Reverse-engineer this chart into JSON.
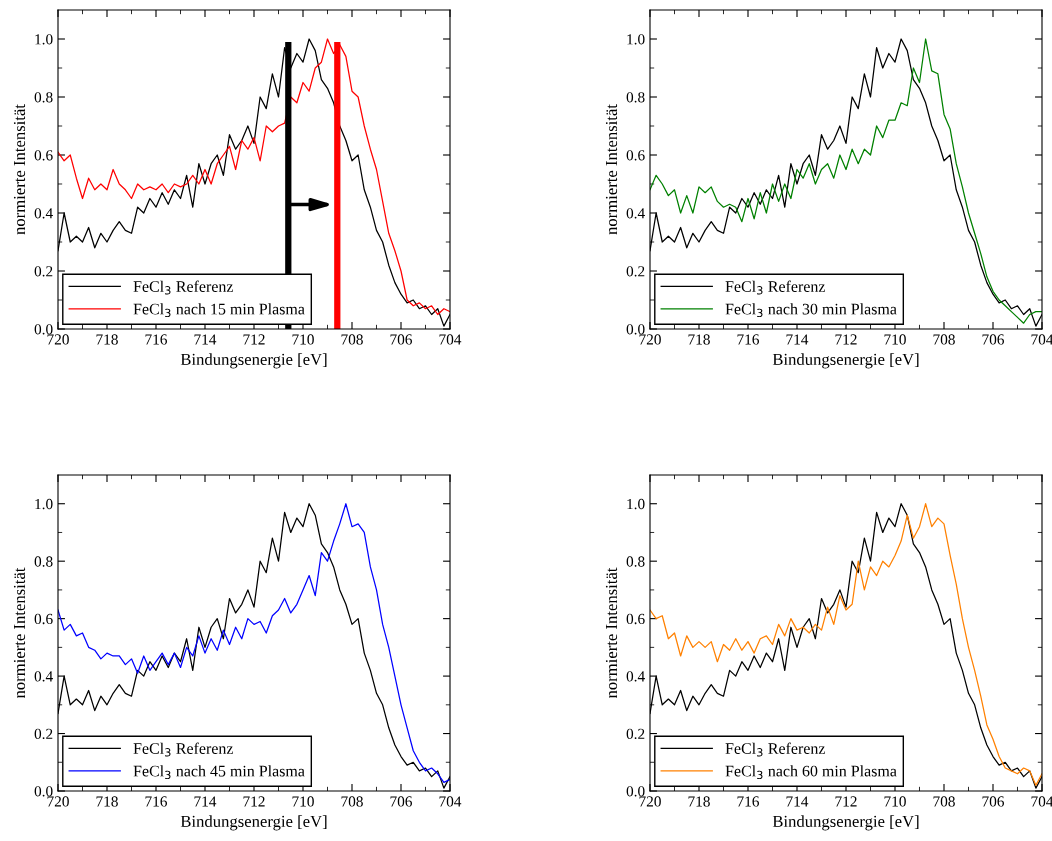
{
  "chart_data": [
    {
      "type": "line",
      "xlabel": "Bindungsenergie [eV]",
      "ylabel": "normierte Intensität",
      "xlim": [
        720,
        704
      ],
      "ylim": [
        0,
        1.1
      ],
      "xticks": [
        720,
        {
          "value": 719,
          "label": null
        },
        718,
        {
          "value": 717,
          "label": null
        },
        716,
        {
          "value": 715,
          "label": null
        },
        714,
        {
          "value": 713,
          "label": null
        },
        712,
        {
          "value": 711,
          "label": null
        },
        710,
        {
          "value": 709,
          "label": null
        },
        708,
        {
          "value": 707,
          "label": null
        },
        706,
        {
          "value": 705,
          "label": null
        },
        704
      ],
      "yticks": [
        {
          "value": 0,
          "label": "0.0"
        },
        {
          "value": 0.1,
          "label": null
        },
        {
          "value": 0.2,
          "label": "0.2"
        },
        {
          "value": 0.3,
          "label": null
        },
        {
          "value": 0.4,
          "label": "0.4"
        },
        {
          "value": 0.5,
          "label": null
        },
        {
          "value": 0.6,
          "label": "0.6"
        },
        {
          "value": 0.7,
          "label": null
        },
        {
          "value": 0.8,
          "label": "0.8"
        },
        {
          "value": 0.9,
          "label": null
        },
        {
          "value": 1.0,
          "label": "1.0"
        }
      ],
      "legend": "bottom left",
      "grid": false,
      "x": [
        720,
        719.75,
        719.5,
        719.25,
        719,
        718.75,
        718.5,
        718.25,
        718,
        717.75,
        717.5,
        717.25,
        717,
        716.75,
        716.5,
        716.25,
        716,
        715.75,
        715.5,
        715.25,
        715,
        714.75,
        714.5,
        714.25,
        714,
        713.75,
        713.5,
        713.25,
        713,
        712.75,
        712.5,
        712.25,
        712,
        711.75,
        711.5,
        711.25,
        711,
        710.75,
        710.5,
        710.25,
        710,
        709.75,
        709.5,
        709.25,
        709,
        708.75,
        708.5,
        708.25,
        708,
        707.75,
        707.5,
        707.25,
        707,
        706.75,
        706.5,
        706.25,
        706,
        705.75,
        705.5,
        705.25,
        705,
        704.75,
        704.5,
        704.25,
        704
      ],
      "series": [
        {
          "name": "FeCl$_{3}$ Referenz",
          "color": "#000000",
          "values": [
            0.27,
            0.4,
            0.3,
            0.32,
            0.3,
            0.35,
            0.28,
            0.33,
            0.3,
            0.34,
            0.37,
            0.34,
            0.33,
            0.42,
            0.4,
            0.45,
            0.42,
            0.47,
            0.43,
            0.48,
            0.45,
            0.53,
            0.42,
            0.57,
            0.5,
            0.57,
            0.6,
            0.53,
            0.67,
            0.62,
            0.65,
            0.7,
            0.64,
            0.8,
            0.76,
            0.88,
            0.8,
            0.97,
            0.9,
            0.95,
            0.92,
            1.0,
            0.96,
            0.86,
            0.83,
            0.78,
            0.7,
            0.65,
            0.58,
            0.6,
            0.48,
            0.42,
            0.34,
            0.3,
            0.22,
            0.16,
            0.12,
            0.09,
            0.1,
            0.07,
            0.08,
            0.05,
            0.07,
            0.01,
            0.05
          ]
        },
        {
          "name": "FeCl$_{3}$ nach 15 min Plasma",
          "color": "#ff0000",
          "values": [
            0.61,
            0.58,
            0.6,
            0.52,
            0.45,
            0.52,
            0.48,
            0.5,
            0.48,
            0.55,
            0.5,
            0.48,
            0.45,
            0.5,
            0.48,
            0.49,
            0.48,
            0.5,
            0.47,
            0.5,
            0.49,
            0.5,
            0.53,
            0.5,
            0.55,
            0.5,
            0.57,
            0.6,
            0.63,
            0.55,
            0.65,
            0.62,
            0.66,
            0.58,
            0.7,
            0.68,
            0.7,
            0.71,
            0.8,
            0.78,
            0.85,
            0.82,
            0.9,
            0.92,
            1.0,
            0.95,
            0.98,
            0.94,
            0.82,
            0.8,
            0.7,
            0.62,
            0.55,
            0.44,
            0.33,
            0.27,
            0.2,
            0.1,
            0.08,
            0.09,
            0.07,
            0.08,
            0.05,
            0.07,
            0.06
          ]
        }
      ],
      "ref_lines": [
        {
          "axis": "x",
          "value": 710.6,
          "color": "#000000"
        },
        {
          "axis": "x",
          "value": 708.6,
          "color": "#ff0000"
        }
      ]
    },
    {
      "type": "line",
      "xlabel": "Bindungsenergie [eV]",
      "ylabel": "normierte Intensität",
      "xlim": [
        720,
        704
      ],
      "ylim": [
        0,
        1.1
      ],
      "xticks": [
        720,
        {
          "value": 719,
          "label": null
        },
        718,
        {
          "value": 717,
          "label": null
        },
        716,
        {
          "value": 715,
          "label": null
        },
        714,
        {
          "value": 713,
          "label": null
        },
        712,
        {
          "value": 711,
          "label": null
        },
        710,
        {
          "value": 709,
          "label": null
        },
        708,
        {
          "value": 707,
          "label": null
        },
        706,
        {
          "value": 705,
          "label": null
        },
        704
      ],
      "yticks": [
        {
          "value": 0,
          "label": "0.0"
        },
        {
          "value": 0.1,
          "label": null
        },
        {
          "value": 0.2,
          "label": "0.2"
        },
        {
          "value": 0.3,
          "label": null
        },
        {
          "value": 0.4,
          "label": "0.4"
        },
        {
          "value": 0.5,
          "label": null
        },
        {
          "value": 0.6,
          "label": "0.6"
        },
        {
          "value": 0.7,
          "label": null
        },
        {
          "value": 0.8,
          "label": "0.8"
        },
        {
          "value": 0.9,
          "label": null
        },
        {
          "value": 1.0,
          "label": "1.0"
        }
      ],
      "legend": "bottom left",
      "grid": false,
      "x": [
        720,
        719.75,
        719.5,
        719.25,
        719,
        718.75,
        718.5,
        718.25,
        718,
        717.75,
        717.5,
        717.25,
        717,
        716.75,
        716.5,
        716.25,
        716,
        715.75,
        715.5,
        715.25,
        715,
        714.75,
        714.5,
        714.25,
        714,
        713.75,
        713.5,
        713.25,
        713,
        712.75,
        712.5,
        712.25,
        712,
        711.75,
        711.5,
        711.25,
        711,
        710.75,
        710.5,
        710.25,
        710,
        709.75,
        709.5,
        709.25,
        709,
        708.75,
        708.5,
        708.25,
        708,
        707.75,
        707.5,
        707.25,
        707,
        706.75,
        706.5,
        706.25,
        706,
        705.75,
        705.5,
        705.25,
        705,
        704.75,
        704.5,
        704.25,
        704
      ],
      "series": [
        {
          "name": "FeCl$_{3}$ Referenz",
          "color": "#000000",
          "values": [
            0.27,
            0.4,
            0.3,
            0.32,
            0.3,
            0.35,
            0.28,
            0.33,
            0.3,
            0.34,
            0.37,
            0.34,
            0.33,
            0.42,
            0.4,
            0.45,
            0.42,
            0.47,
            0.43,
            0.48,
            0.45,
            0.53,
            0.42,
            0.57,
            0.5,
            0.57,
            0.6,
            0.53,
            0.67,
            0.62,
            0.65,
            0.7,
            0.64,
            0.8,
            0.76,
            0.88,
            0.8,
            0.97,
            0.9,
            0.95,
            0.92,
            1.0,
            0.96,
            0.86,
            0.83,
            0.78,
            0.7,
            0.65,
            0.58,
            0.6,
            0.48,
            0.42,
            0.34,
            0.3,
            0.22,
            0.16,
            0.12,
            0.09,
            0.1,
            0.07,
            0.08,
            0.05,
            0.07,
            0.01,
            0.05
          ]
        },
        {
          "name": "FeCl$_{3}$ nach 30 min Plasma",
          "color": "#008000",
          "values": [
            0.48,
            0.53,
            0.5,
            0.46,
            0.48,
            0.4,
            0.46,
            0.4,
            0.49,
            0.47,
            0.49,
            0.44,
            0.42,
            0.43,
            0.42,
            0.37,
            0.45,
            0.38,
            0.47,
            0.4,
            0.5,
            0.44,
            0.5,
            0.45,
            0.55,
            0.52,
            0.57,
            0.5,
            0.55,
            0.57,
            0.52,
            0.6,
            0.55,
            0.62,
            0.57,
            0.62,
            0.6,
            0.7,
            0.66,
            0.72,
            0.72,
            0.78,
            0.77,
            0.9,
            0.85,
            1.0,
            0.89,
            0.88,
            0.74,
            0.69,
            0.57,
            0.49,
            0.4,
            0.33,
            0.26,
            0.18,
            0.13,
            0.1,
            0.08,
            0.06,
            0.04,
            0.02,
            0.05,
            0.06,
            0.06
          ]
        }
      ]
    },
    {
      "type": "line",
      "xlabel": "Bindungsenergie [eV]",
      "ylabel": "normierte Intensität",
      "xlim": [
        720,
        704
      ],
      "ylim": [
        0,
        1.1
      ],
      "xticks": [
        720,
        {
          "value": 719,
          "label": null
        },
        718,
        {
          "value": 717,
          "label": null
        },
        716,
        {
          "value": 715,
          "label": null
        },
        714,
        {
          "value": 713,
          "label": null
        },
        712,
        {
          "value": 711,
          "label": null
        },
        710,
        {
          "value": 709,
          "label": null
        },
        708,
        {
          "value": 707,
          "label": null
        },
        706,
        {
          "value": 705,
          "label": null
        },
        704
      ],
      "yticks": [
        {
          "value": 0,
          "label": "0.0"
        },
        {
          "value": 0.1,
          "label": null
        },
        {
          "value": 0.2,
          "label": "0.2"
        },
        {
          "value": 0.3,
          "label": null
        },
        {
          "value": 0.4,
          "label": "0.4"
        },
        {
          "value": 0.5,
          "label": null
        },
        {
          "value": 0.6,
          "label": "0.6"
        },
        {
          "value": 0.7,
          "label": null
        },
        {
          "value": 0.8,
          "label": "0.8"
        },
        {
          "value": 0.9,
          "label": null
        },
        {
          "value": 1.0,
          "label": "1.0"
        }
      ],
      "legend": "bottom left",
      "grid": false,
      "x": [
        720,
        719.75,
        719.5,
        719.25,
        719,
        718.75,
        718.5,
        718.25,
        718,
        717.75,
        717.5,
        717.25,
        717,
        716.75,
        716.5,
        716.25,
        716,
        715.75,
        715.5,
        715.25,
        715,
        714.75,
        714.5,
        714.25,
        714,
        713.75,
        713.5,
        713.25,
        713,
        712.75,
        712.5,
        712.25,
        712,
        711.75,
        711.5,
        711.25,
        711,
        710.75,
        710.5,
        710.25,
        710,
        709.75,
        709.5,
        709.25,
        709,
        708.75,
        708.5,
        708.25,
        708,
        707.75,
        707.5,
        707.25,
        707,
        706.75,
        706.5,
        706.25,
        706,
        705.75,
        705.5,
        705.25,
        705,
        704.75,
        704.5,
        704.25,
        704
      ],
      "series": [
        {
          "name": "FeCl$_{3}$ Referenz",
          "color": "#000000",
          "values": [
            0.27,
            0.4,
            0.3,
            0.32,
            0.3,
            0.35,
            0.28,
            0.33,
            0.3,
            0.34,
            0.37,
            0.34,
            0.33,
            0.42,
            0.4,
            0.45,
            0.42,
            0.47,
            0.43,
            0.48,
            0.45,
            0.53,
            0.42,
            0.57,
            0.5,
            0.57,
            0.6,
            0.53,
            0.67,
            0.62,
            0.65,
            0.7,
            0.64,
            0.8,
            0.76,
            0.88,
            0.8,
            0.97,
            0.9,
            0.95,
            0.92,
            1.0,
            0.96,
            0.86,
            0.83,
            0.78,
            0.7,
            0.65,
            0.58,
            0.6,
            0.48,
            0.42,
            0.34,
            0.3,
            0.22,
            0.16,
            0.12,
            0.09,
            0.1,
            0.07,
            0.08,
            0.05,
            0.07,
            0.01,
            0.05
          ]
        },
        {
          "name": "FeCl$_{3}$ nach 45 min Plasma",
          "color": "#0000ff",
          "values": [
            0.63,
            0.56,
            0.58,
            0.54,
            0.55,
            0.5,
            0.49,
            0.46,
            0.48,
            0.47,
            0.47,
            0.44,
            0.46,
            0.41,
            0.47,
            0.42,
            0.45,
            0.48,
            0.44,
            0.48,
            0.43,
            0.5,
            0.47,
            0.54,
            0.48,
            0.53,
            0.49,
            0.56,
            0.51,
            0.57,
            0.53,
            0.6,
            0.58,
            0.59,
            0.55,
            0.61,
            0.63,
            0.67,
            0.62,
            0.65,
            0.7,
            0.75,
            0.68,
            0.83,
            0.8,
            0.87,
            0.93,
            1.0,
            0.92,
            0.93,
            0.9,
            0.78,
            0.7,
            0.58,
            0.5,
            0.4,
            0.3,
            0.22,
            0.14,
            0.1,
            0.07,
            0.08,
            0.06,
            0.03,
            0.04
          ]
        }
      ]
    },
    {
      "type": "line",
      "xlabel": "Bindungsenergie [eV]",
      "ylabel": "normierte Intensität",
      "xlim": [
        720,
        704
      ],
      "ylim": [
        0,
        1.1
      ],
      "xticks": [
        720,
        {
          "value": 719,
          "label": null
        },
        718,
        {
          "value": 717,
          "label": null
        },
        716,
        {
          "value": 715,
          "label": null
        },
        714,
        {
          "value": 713,
          "label": null
        },
        712,
        {
          "value": 711,
          "label": null
        },
        710,
        {
          "value": 709,
          "label": null
        },
        708,
        {
          "value": 707,
          "label": null
        },
        706,
        {
          "value": 705,
          "label": null
        },
        704
      ],
      "yticks": [
        {
          "value": 0,
          "label": "0.0"
        },
        {
          "value": 0.1,
          "label": null
        },
        {
          "value": 0.2,
          "label": "0.2"
        },
        {
          "value": 0.3,
          "label": null
        },
        {
          "value": 0.4,
          "label": "0.4"
        },
        {
          "value": 0.5,
          "label": null
        },
        {
          "value": 0.6,
          "label": "0.6"
        },
        {
          "value": 0.7,
          "label": null
        },
        {
          "value": 0.8,
          "label": "0.8"
        },
        {
          "value": 0.9,
          "label": null
        },
        {
          "value": 1.0,
          "label": "1.0"
        }
      ],
      "legend": "bottom left",
      "grid": false,
      "x": [
        720,
        719.75,
        719.5,
        719.25,
        719,
        718.75,
        718.5,
        718.25,
        718,
        717.75,
        717.5,
        717.25,
        717,
        716.75,
        716.5,
        716.25,
        716,
        715.75,
        715.5,
        715.25,
        715,
        714.75,
        714.5,
        714.25,
        714,
        713.75,
        713.5,
        713.25,
        713,
        712.75,
        712.5,
        712.25,
        712,
        711.75,
        711.5,
        711.25,
        711,
        710.75,
        710.5,
        710.25,
        710,
        709.75,
        709.5,
        709.25,
        709,
        708.75,
        708.5,
        708.25,
        708,
        707.75,
        707.5,
        707.25,
        707,
        706.75,
        706.5,
        706.25,
        706,
        705.75,
        705.5,
        705.25,
        705,
        704.75,
        704.5,
        704.25,
        704
      ],
      "series": [
        {
          "name": "FeCl$_{3}$ Referenz",
          "color": "#000000",
          "values": [
            0.27,
            0.4,
            0.3,
            0.32,
            0.3,
            0.35,
            0.28,
            0.33,
            0.3,
            0.34,
            0.37,
            0.34,
            0.33,
            0.42,
            0.4,
            0.45,
            0.42,
            0.47,
            0.43,
            0.48,
            0.45,
            0.53,
            0.42,
            0.57,
            0.5,
            0.57,
            0.6,
            0.53,
            0.67,
            0.62,
            0.65,
            0.7,
            0.64,
            0.8,
            0.76,
            0.88,
            0.8,
            0.97,
            0.9,
            0.95,
            0.92,
            1.0,
            0.96,
            0.86,
            0.83,
            0.78,
            0.7,
            0.65,
            0.58,
            0.6,
            0.48,
            0.42,
            0.34,
            0.3,
            0.22,
            0.16,
            0.12,
            0.09,
            0.1,
            0.07,
            0.08,
            0.05,
            0.07,
            0.01,
            0.05
          ]
        },
        {
          "name": "FeCl$_{3}$ nach 60 min Plasma",
          "color": "#ff8000",
          "values": [
            0.63,
            0.6,
            0.61,
            0.53,
            0.55,
            0.47,
            0.54,
            0.5,
            0.52,
            0.5,
            0.52,
            0.45,
            0.51,
            0.49,
            0.53,
            0.49,
            0.52,
            0.48,
            0.53,
            0.54,
            0.51,
            0.58,
            0.54,
            0.6,
            0.56,
            0.57,
            0.55,
            0.58,
            0.56,
            0.64,
            0.58,
            0.68,
            0.63,
            0.65,
            0.8,
            0.7,
            0.78,
            0.75,
            0.8,
            0.78,
            0.82,
            0.87,
            0.96,
            0.88,
            0.92,
            1.0,
            0.92,
            0.95,
            0.93,
            0.82,
            0.72,
            0.6,
            0.5,
            0.42,
            0.33,
            0.23,
            0.18,
            0.12,
            0.08,
            0.07,
            0.06,
            0.08,
            0.07,
            0.02,
            0.06
          ]
        }
      ]
    }
  ]
}
